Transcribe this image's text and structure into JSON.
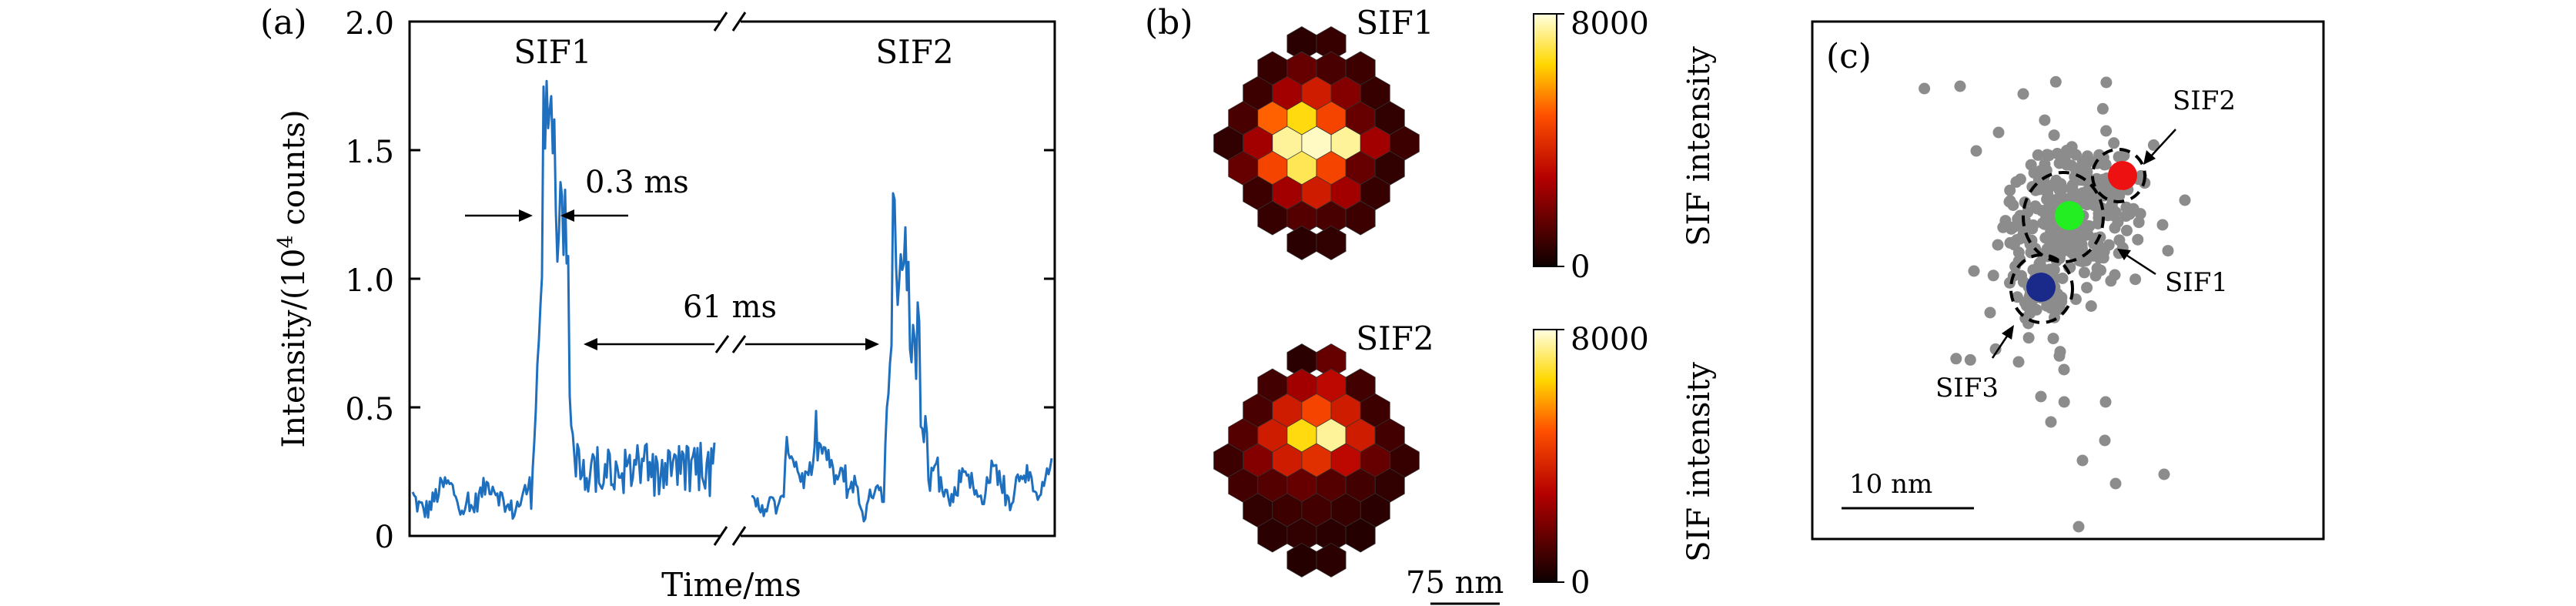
{
  "panel_a": {
    "label": "(a)",
    "ylabel": "Intensity/(10",
    "ylabel_sup": "4",
    "ylabel_tail": " counts)",
    "xlabel": "Time/ms",
    "ann_width": "0.3 ms",
    "ann_gap": "61 ms",
    "peak1_label": "SIF1",
    "peak2_label": "SIF2",
    "yticks": [
      "0",
      "0.5",
      "1.0",
      "1.5",
      "2.0"
    ],
    "trace_color": "#1f6fbf"
  },
  "panel_b": {
    "label": "(b)",
    "top_title": "SIF1",
    "bottom_title": "SIF2",
    "colorbar_max": "8000",
    "colorbar_min": "0",
    "colorbar_label": "SIF intensity",
    "scalebar": "75 nm"
  },
  "panel_c": {
    "label": "(c)",
    "scalebar": "10 nm",
    "labels": [
      "SIF1",
      "SIF2",
      "SIF3"
    ],
    "colors": {
      "scatter": "#8c8c8c",
      "sif1": "#22ee22",
      "sif2": "#ee1111",
      "sif3": "#1a2a8a"
    }
  },
  "chart_data": [
    {
      "type": "line",
      "title": "",
      "xlabel": "Time/ms",
      "ylabel": "Intensity/(10^4 counts)",
      "ylim": [
        0,
        2.0
      ],
      "broken_x_axis": true,
      "series": [
        {
          "name": "SIF1",
          "baseline": 0.15,
          "peak": 1.8,
          "burst_duration_ms": 0.3
        },
        {
          "name": "SIF2",
          "baseline": 0.2,
          "peak": 1.38
        }
      ],
      "annotations": [
        "0.3 ms",
        "61 ms"
      ],
      "grid": false
    },
    {
      "type": "heatmap",
      "title": "SIF1",
      "cell_shape": "hexagon",
      "colorbar_range": [
        0,
        8000
      ],
      "colorbar_label": "SIF intensity",
      "rows": [
        [
          500,
          700
        ],
        [
          700,
          1500,
          1000,
          800
        ],
        [
          800,
          2500,
          3500,
          2000,
          700
        ],
        [
          1000,
          5000,
          6500,
          4500,
          1500,
          600
        ],
        [
          600,
          2500,
          7500,
          7800,
          7500,
          2500,
          800
        ],
        [
          1500,
          4500,
          7000,
          4500,
          1500,
          600
        ],
        [
          800,
          2500,
          3500,
          2500,
          700
        ],
        [
          700,
          1200,
          1000,
          800
        ],
        [
          500,
          600
        ]
      ]
    },
    {
      "type": "heatmap",
      "title": "SIF2",
      "cell_shape": "hexagon",
      "colorbar_range": [
        0,
        8000
      ],
      "colorbar_label": "SIF intensity",
      "rows": [
        [
          500,
          1500
        ],
        [
          900,
          2500,
          3000,
          900
        ],
        [
          1000,
          3500,
          4500,
          3500,
          800
        ],
        [
          1200,
          3500,
          6500,
          7500,
          3500,
          900
        ],
        [
          800,
          2000,
          3500,
          4000,
          3000,
          1500,
          700
        ],
        [
          900,
          1200,
          1500,
          1200,
          900,
          600
        ],
        [
          600,
          800,
          900,
          700,
          500
        ],
        [
          500,
          600,
          500,
          400
        ],
        [
          400,
          500
        ]
      ]
    },
    {
      "type": "scatter",
      "title": "",
      "scalebar": "10 nm",
      "series": [
        {
          "name": "SIF1",
          "center": [
            0,
            0
          ],
          "color": "#22ee22"
        },
        {
          "name": "SIF2",
          "center": [
            4.5,
            3.5
          ],
          "color": "#ee1111"
        },
        {
          "name": "SIF3",
          "center": [
            -2.5,
            -5.5
          ],
          "color": "#1a2a8a"
        }
      ],
      "grid": false
    }
  ]
}
